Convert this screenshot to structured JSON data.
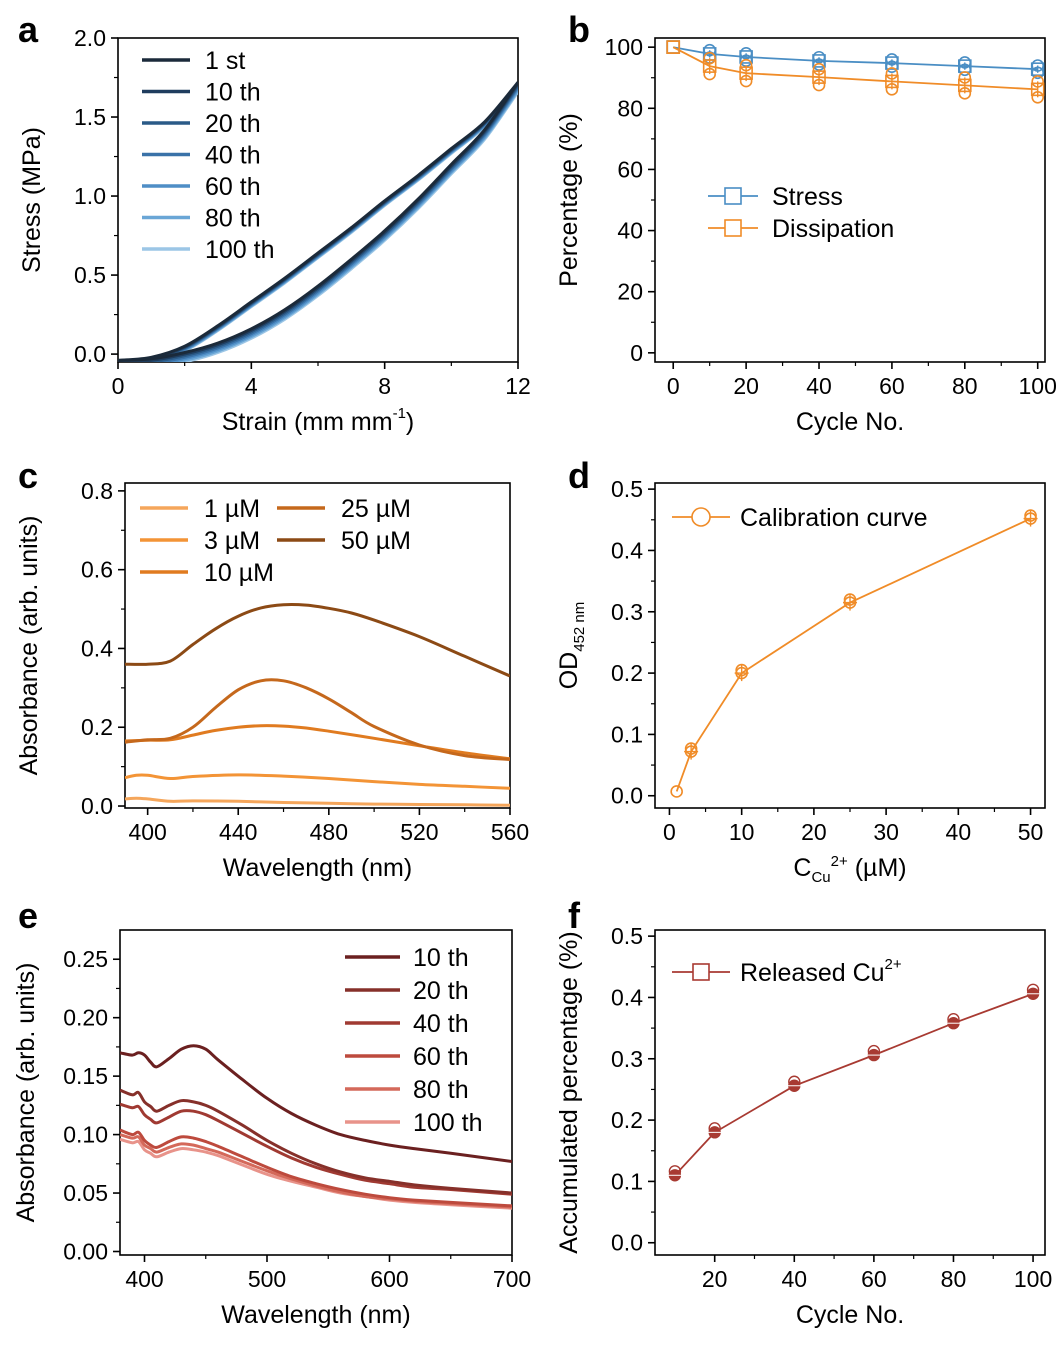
{
  "chart_data": [
    {
      "panel": "a",
      "type": "line",
      "xlabel": "Strain (mm mm",
      "xlabel_sup": "-1",
      "xlabel_tail": ")",
      "ylabel": "Stress (MPa)",
      "xlim": [
        0,
        12
      ],
      "ylim": [
        -0.05,
        2.0
      ],
      "xticks": [
        0,
        4,
        8,
        12
      ],
      "yticks": [
        0.0,
        0.5,
        1.0,
        1.5,
        2.0
      ],
      "ytick_labels": [
        "0.0",
        "0.5",
        "1.0",
        "1.5",
        "2.0"
      ],
      "legend_position": "top-left",
      "series": [
        {
          "name": "1 st",
          "color": "#1b2a3a",
          "offset": 0.0
        },
        {
          "name": "10 th",
          "color": "#1f3d5e",
          "offset": -0.01
        },
        {
          "name": "20 th",
          "color": "#2a5a87",
          "offset": -0.02
        },
        {
          "name": "40 th",
          "color": "#3a72a8",
          "offset": -0.03
        },
        {
          "name": "60 th",
          "color": "#4f8ec6",
          "offset": -0.04
        },
        {
          "name": "80 th",
          "color": "#6aa6d6",
          "offset": -0.05
        },
        {
          "name": "100 th",
          "color": "#9cc6e6",
          "offset": -0.06
        }
      ],
      "loading_curve": {
        "x": [
          0,
          1,
          2,
          3,
          4,
          5,
          6,
          7,
          8,
          9,
          10,
          11,
          12
        ],
        "y": [
          -0.04,
          -0.02,
          0.05,
          0.18,
          0.33,
          0.48,
          0.64,
          0.8,
          0.97,
          1.13,
          1.3,
          1.47,
          1.72
        ]
      },
      "unloading_curve": {
        "x": [
          12,
          11,
          10,
          9,
          8,
          7,
          6,
          5,
          4,
          3,
          2,
          1,
          0
        ],
        "y": [
          1.72,
          1.42,
          1.2,
          0.98,
          0.78,
          0.6,
          0.43,
          0.28,
          0.16,
          0.07,
          0.01,
          -0.03,
          -0.04
        ]
      }
    },
    {
      "panel": "b",
      "type": "line",
      "xlabel": "Cycle No.",
      "ylabel": "Percentage (%)",
      "xlim": [
        -5,
        102
      ],
      "ylim": [
        -3,
        103
      ],
      "xticks": [
        0,
        20,
        40,
        60,
        80,
        100
      ],
      "yticks": [
        0,
        20,
        40,
        60,
        80,
        100
      ],
      "legend_position": "center-left",
      "series": [
        {
          "name": "Stress",
          "color": "#4a8ec4",
          "x": [
            0,
            10,
            20,
            40,
            60,
            80,
            100
          ],
          "y": [
            100,
            97.8,
            96.8,
            95.5,
            94.8,
            93.8,
            92.8
          ],
          "spread": 1.2
        },
        {
          "name": "Dissipation",
          "color": "#f08c28",
          "x": [
            0,
            10,
            20,
            40,
            60,
            80,
            100
          ],
          "y": [
            100,
            93.8,
            91.5,
            90.2,
            88.8,
            87.5,
            86.2
          ],
          "spread": 2.6
        }
      ]
    },
    {
      "panel": "c",
      "type": "line",
      "xlabel": "Wavelength (nm)",
      "ylabel": "Absorbance (arb. units)",
      "xlim": [
        390,
        560
      ],
      "ylim": [
        -0.005,
        0.82
      ],
      "xticks": [
        400,
        440,
        480,
        520,
        560
      ],
      "yticks": [
        0.0,
        0.2,
        0.4,
        0.6,
        0.8
      ],
      "ytick_labels": [
        "0.0",
        "0.2",
        "0.4",
        "0.6",
        "0.8"
      ],
      "legend_position": "top-left",
      "series": [
        {
          "name": "1 µM",
          "color": "#f5a65b",
          "x": [
            390,
            395,
            400,
            410,
            420,
            440,
            460,
            480,
            500,
            520,
            540,
            560
          ],
          "y": [
            0.018,
            0.02,
            0.018,
            0.012,
            0.013,
            0.012,
            0.009,
            0.007,
            0.005,
            0.004,
            0.003,
            0.002
          ]
        },
        {
          "name": "3 µM",
          "color": "#f39436",
          "x": [
            390,
            395,
            400,
            410,
            420,
            440,
            460,
            480,
            500,
            520,
            540,
            560
          ],
          "y": [
            0.072,
            0.078,
            0.078,
            0.07,
            0.075,
            0.079,
            0.076,
            0.07,
            0.062,
            0.055,
            0.05,
            0.045
          ]
        },
        {
          "name": "10 µM",
          "color": "#e07b20",
          "x": [
            390,
            400,
            410,
            420,
            430,
            440,
            450,
            460,
            470,
            480,
            500,
            520,
            540,
            560
          ],
          "y": [
            0.165,
            0.167,
            0.168,
            0.18,
            0.192,
            0.2,
            0.204,
            0.203,
            0.198,
            0.19,
            0.172,
            0.153,
            0.135,
            0.12
          ]
        },
        {
          "name": "25 µM",
          "color": "#c5681c",
          "x": [
            390,
            400,
            410,
            420,
            430,
            440,
            450,
            460,
            470,
            480,
            490,
            500,
            520,
            540,
            560
          ],
          "y": [
            0.162,
            0.168,
            0.172,
            0.2,
            0.25,
            0.295,
            0.318,
            0.318,
            0.3,
            0.272,
            0.237,
            0.202,
            0.155,
            0.128,
            0.118
          ]
        },
        {
          "name": "50 µM",
          "color": "#8c4a15",
          "x": [
            390,
            400,
            410,
            420,
            430,
            440,
            450,
            460,
            470,
            480,
            490,
            500,
            520,
            540,
            560
          ],
          "y": [
            0.36,
            0.36,
            0.368,
            0.41,
            0.45,
            0.482,
            0.503,
            0.511,
            0.51,
            0.502,
            0.49,
            0.472,
            0.43,
            0.38,
            0.33
          ]
        }
      ]
    },
    {
      "panel": "d",
      "type": "line",
      "xlabel": "C",
      "xlabel_sub": "Cu",
      "xlabel_sup": "2+",
      "xlabel_tail": " (µM)",
      "ylabel": "OD",
      "ylabel_sub": "452 nm",
      "xlim": [
        -2,
        52
      ],
      "ylim": [
        -0.02,
        0.51
      ],
      "xticks": [
        0,
        10,
        20,
        30,
        40,
        50
      ],
      "yticks": [
        0.0,
        0.1,
        0.2,
        0.3,
        0.4,
        0.5
      ],
      "ytick_labels": [
        "0.0",
        "0.1",
        "0.2",
        "0.3",
        "0.4",
        "0.5"
      ],
      "legend_position": "top-left",
      "series": [
        {
          "name": "Calibration curve",
          "color": "#f08c28",
          "x": [
            1,
            3,
            10,
            25,
            50
          ],
          "y": [
            0.007,
            0.072,
            0.2,
            0.315,
            0.452
          ]
        }
      ]
    },
    {
      "panel": "e",
      "type": "line",
      "xlabel": "Wavelength (nm)",
      "ylabel": "Absorbance (arb. units)",
      "xlim": [
        380,
        700
      ],
      "ylim": [
        -0.003,
        0.275
      ],
      "xticks": [
        400,
        500,
        600,
        700
      ],
      "yticks": [
        0.0,
        0.05,
        0.1,
        0.15,
        0.2,
        0.25
      ],
      "ytick_labels": [
        "0.00",
        "0.05",
        "0.10",
        "0.15",
        "0.20",
        "0.25"
      ],
      "legend_position": "top-right",
      "series": [
        {
          "name": "10 th",
          "color": "#6b2020",
          "x": [
            380,
            390,
            395,
            400,
            405,
            410,
            420,
            430,
            440,
            450,
            460,
            480,
            500,
            520,
            540,
            560,
            580,
            600,
            620,
            650,
            700
          ],
          "y": [
            0.17,
            0.168,
            0.17,
            0.168,
            0.162,
            0.158,
            0.165,
            0.173,
            0.176,
            0.173,
            0.164,
            0.147,
            0.131,
            0.118,
            0.108,
            0.1,
            0.095,
            0.091,
            0.088,
            0.084,
            0.077
          ]
        },
        {
          "name": "20 th",
          "color": "#86302a",
          "x": [
            380,
            390,
            395,
            400,
            405,
            410,
            420,
            430,
            440,
            450,
            460,
            480,
            500,
            520,
            540,
            560,
            580,
            600,
            620,
            650,
            700
          ],
          "y": [
            0.138,
            0.134,
            0.136,
            0.128,
            0.124,
            0.12,
            0.125,
            0.129,
            0.128,
            0.125,
            0.12,
            0.108,
            0.095,
            0.084,
            0.075,
            0.068,
            0.063,
            0.06,
            0.057,
            0.054,
            0.05
          ]
        },
        {
          "name": "40 th",
          "color": "#a03a32",
          "x": [
            380,
            390,
            395,
            400,
            405,
            410,
            420,
            430,
            440,
            450,
            460,
            480,
            500,
            520,
            540,
            560,
            580,
            600,
            620,
            650,
            700
          ],
          "y": [
            0.126,
            0.123,
            0.124,
            0.117,
            0.113,
            0.11,
            0.115,
            0.12,
            0.12,
            0.117,
            0.112,
            0.101,
            0.09,
            0.08,
            0.072,
            0.066,
            0.061,
            0.058,
            0.055,
            0.053,
            0.049
          ]
        },
        {
          "name": "60 th",
          "color": "#bd4a3d",
          "x": [
            380,
            390,
            395,
            400,
            405,
            410,
            420,
            430,
            440,
            450,
            460,
            480,
            500,
            520,
            540,
            560,
            580,
            600,
            620,
            650,
            700
          ],
          "y": [
            0.104,
            0.1,
            0.102,
            0.095,
            0.091,
            0.089,
            0.094,
            0.098,
            0.097,
            0.094,
            0.09,
            0.081,
            0.072,
            0.064,
            0.058,
            0.053,
            0.049,
            0.046,
            0.044,
            0.042,
            0.039
          ]
        },
        {
          "name": "80 th",
          "color": "#d4695a",
          "x": [
            380,
            390,
            395,
            400,
            405,
            410,
            420,
            430,
            440,
            450,
            460,
            480,
            500,
            520,
            540,
            560,
            580,
            600,
            620,
            650,
            700
          ],
          "y": [
            0.1,
            0.097,
            0.098,
            0.091,
            0.088,
            0.085,
            0.089,
            0.092,
            0.091,
            0.088,
            0.085,
            0.077,
            0.069,
            0.062,
            0.056,
            0.051,
            0.047,
            0.045,
            0.043,
            0.041,
            0.038
          ]
        },
        {
          "name": "100 th",
          "color": "#e8938a",
          "x": [
            380,
            390,
            395,
            400,
            405,
            410,
            420,
            430,
            440,
            450,
            460,
            480,
            500,
            520,
            540,
            560,
            580,
            600,
            620,
            650,
            700
          ],
          "y": [
            0.096,
            0.093,
            0.094,
            0.087,
            0.084,
            0.081,
            0.085,
            0.088,
            0.087,
            0.085,
            0.082,
            0.074,
            0.066,
            0.06,
            0.055,
            0.05,
            0.047,
            0.044,
            0.042,
            0.04,
            0.037
          ]
        }
      ]
    },
    {
      "panel": "f",
      "type": "line",
      "xlabel": "Cycle No.",
      "ylabel": "Accumulated percentage (%)",
      "xlim": [
        5,
        103
      ],
      "ylim": [
        -0.02,
        0.51
      ],
      "xticks": [
        20,
        40,
        60,
        80,
        100
      ],
      "yticks": [
        0.0,
        0.1,
        0.2,
        0.3,
        0.4,
        0.5
      ],
      "ytick_labels": [
        "0.0",
        "0.1",
        "0.2",
        "0.3",
        "0.4",
        "0.5"
      ],
      "legend_position": "top-left",
      "legend_sup": "2+",
      "series": [
        {
          "name": "Released Cu",
          "color": "#a83a32",
          "x": [
            10,
            20,
            40,
            60,
            80,
            100
          ],
          "y": [
            0.11,
            0.18,
            0.256,
            0.306,
            0.358,
            0.406
          ]
        }
      ]
    }
  ]
}
